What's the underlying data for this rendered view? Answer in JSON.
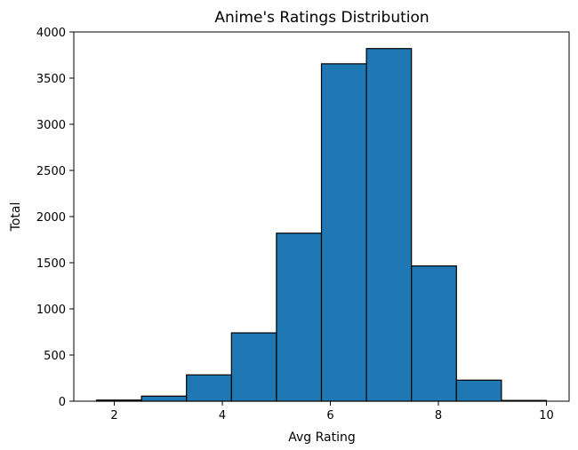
{
  "chart_data": {
    "type": "bar",
    "title": "Anime's Ratings Distribution",
    "xlabel": "Avg Rating",
    "ylabel": "Total",
    "bin_edges": [
      1.67,
      2.503,
      3.336,
      4.169,
      5.002,
      5.835,
      6.668,
      7.501,
      8.334,
      9.167,
      10.0
    ],
    "values": [
      12,
      55,
      285,
      740,
      1820,
      3655,
      3820,
      1465,
      228,
      8
    ],
    "xlim": [
      1.25,
      10.42
    ],
    "ylim": [
      0,
      4000
    ],
    "xticks": [
      "2",
      "4",
      "6",
      "8",
      "10"
    ],
    "yticks": [
      "0",
      "500",
      "1000",
      "1500",
      "2000",
      "2500",
      "3000",
      "3500",
      "4000"
    ],
    "grid": false,
    "colors": {
      "bar_fill": "#1f77b4",
      "bar_edge": "#000000"
    }
  }
}
